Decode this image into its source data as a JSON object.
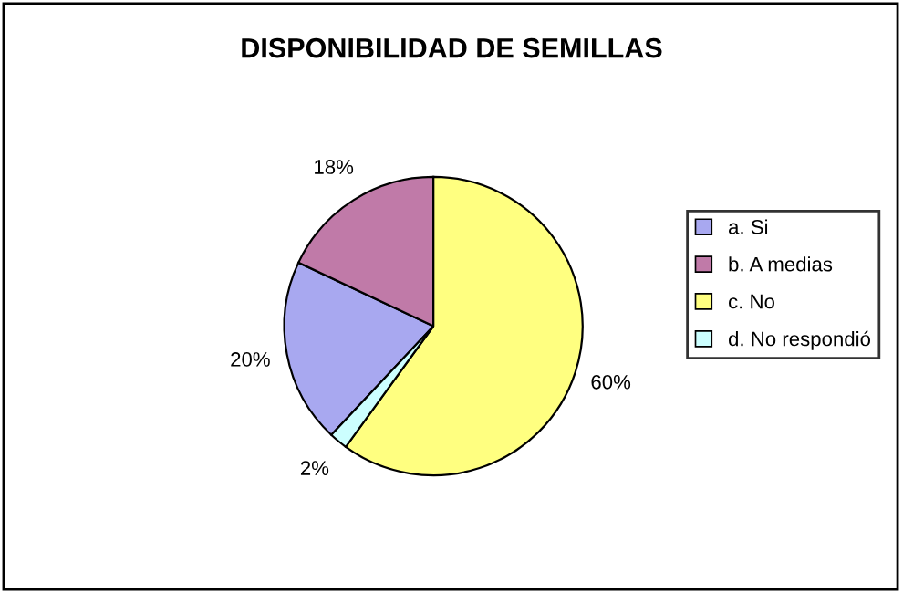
{
  "chart_data": {
    "type": "pie",
    "title": "DISPONIBILIDAD DE SEMILLAS",
    "categories": [
      "a. Si",
      "b. A medias",
      "c. No",
      "d. No respondió"
    ],
    "values": [
      20,
      18,
      60,
      2
    ],
    "colors": [
      "#a8a8f0",
      "#c07aa8",
      "#ffff80",
      "#ccffff"
    ],
    "value_labels": [
      "20%",
      "18%",
      "60%",
      "2%"
    ],
    "legend": "right"
  }
}
